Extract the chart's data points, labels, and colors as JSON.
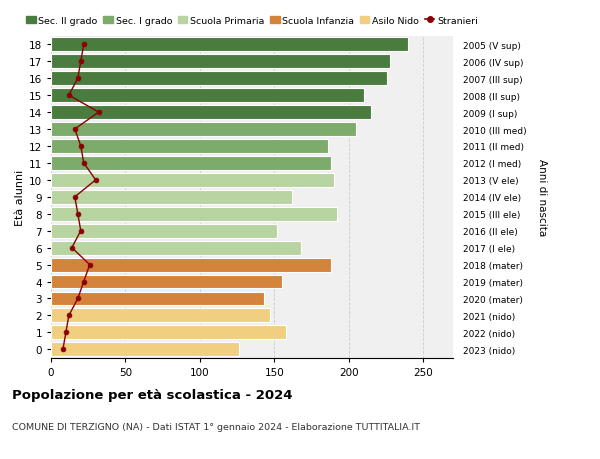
{
  "ages": [
    18,
    17,
    16,
    15,
    14,
    13,
    12,
    11,
    10,
    9,
    8,
    7,
    6,
    5,
    4,
    3,
    2,
    1,
    0
  ],
  "right_labels": [
    "2005 (V sup)",
    "2006 (IV sup)",
    "2007 (III sup)",
    "2008 (II sup)",
    "2009 (I sup)",
    "2010 (III med)",
    "2011 (II med)",
    "2012 (I med)",
    "2013 (V ele)",
    "2014 (IV ele)",
    "2015 (III ele)",
    "2016 (II ele)",
    "2017 (I ele)",
    "2018 (mater)",
    "2019 (mater)",
    "2020 (mater)",
    "2021 (nido)",
    "2022 (nido)",
    "2023 (nido)"
  ],
  "bar_values": [
    240,
    228,
    226,
    210,
    215,
    205,
    186,
    188,
    190,
    162,
    192,
    152,
    168,
    188,
    155,
    143,
    147,
    158,
    126
  ],
  "stranieri": [
    22,
    20,
    18,
    12,
    32,
    16,
    20,
    22,
    30,
    16,
    18,
    20,
    14,
    26,
    22,
    18,
    12,
    10,
    8
  ],
  "bar_colors": [
    "#4a7c3f",
    "#4a7c3f",
    "#4a7c3f",
    "#4a7c3f",
    "#4a7c3f",
    "#7dab6b",
    "#7dab6b",
    "#7dab6b",
    "#b8d4a0",
    "#b8d4a0",
    "#b8d4a0",
    "#b8d4a0",
    "#b8d4a0",
    "#d4843a",
    "#d4843a",
    "#d4843a",
    "#f0d080",
    "#f0d080",
    "#f0d080"
  ],
  "legend_labels": [
    "Sec. II grado",
    "Sec. I grado",
    "Scuola Primaria",
    "Scuola Infanzia",
    "Asilo Nido",
    "Stranieri"
  ],
  "legend_colors": [
    "#4a7c3f",
    "#7dab6b",
    "#b8d4a0",
    "#d4843a",
    "#f0d080",
    "#a00000"
  ],
  "stranieri_color": "#8b0000",
  "ylabel_left": "Età alunni",
  "ylabel_right": "Anni di nascita",
  "title": "Popolazione per età scolastica - 2024",
  "subtitle": "COMUNE DI TERZIGNO (NA) - Dati ISTAT 1° gennaio 2024 - Elaborazione TUTTITALIA.IT",
  "xlim": [
    0,
    270
  ],
  "xticks": [
    0,
    50,
    100,
    150,
    200,
    250
  ],
  "background_color": "#ffffff",
  "bar_background": "#f0f0f0"
}
